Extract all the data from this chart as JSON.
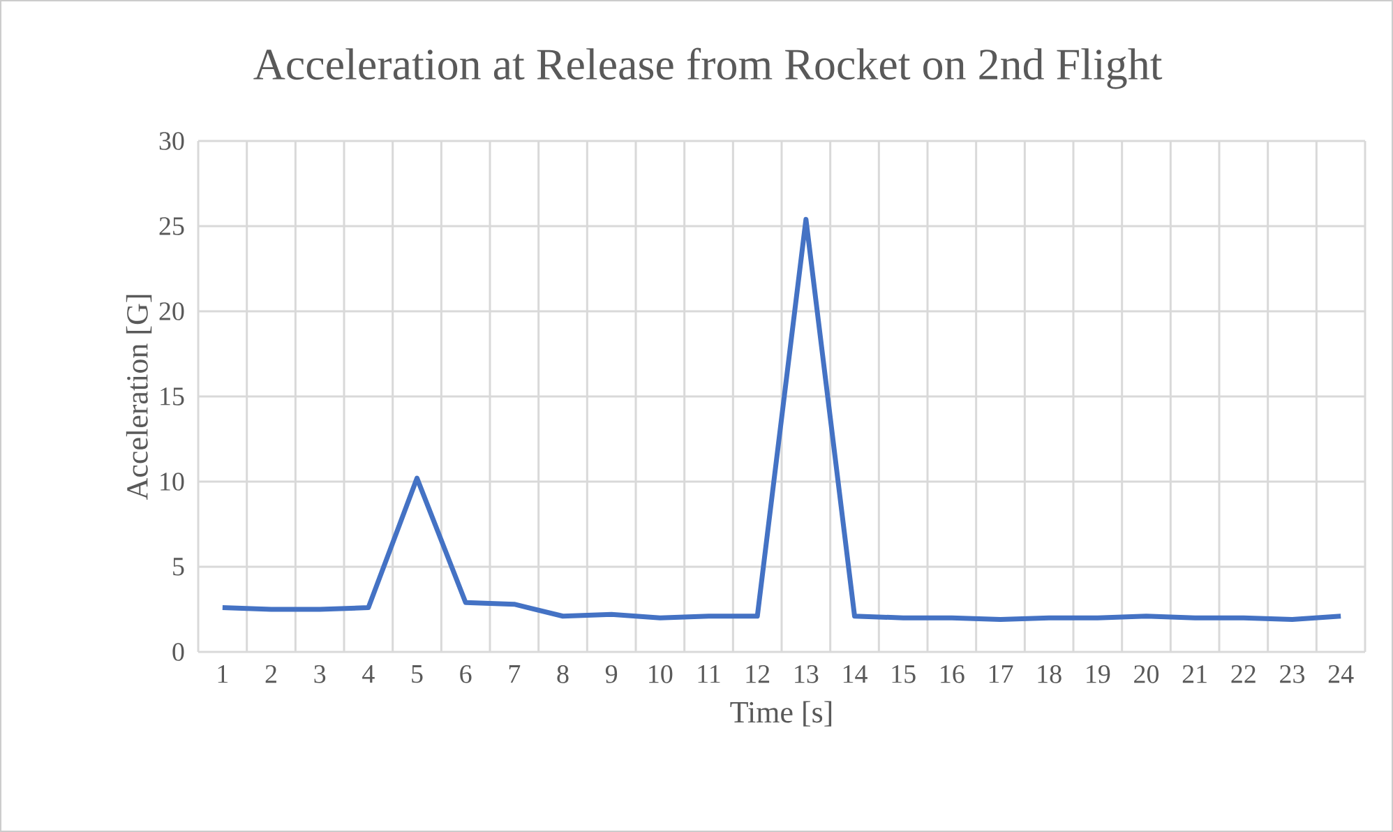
{
  "chart_data": {
    "type": "line",
    "title": "Acceleration at Release from Rocket on 2nd Flight",
    "xlabel": "Time [s]",
    "ylabel": "Acceleration [G]",
    "categories": [
      "1",
      "2",
      "3",
      "4",
      "5",
      "6",
      "7",
      "8",
      "9",
      "10",
      "11",
      "12",
      "13",
      "14",
      "15",
      "16",
      "17",
      "18",
      "19",
      "20",
      "21",
      "22",
      "23",
      "24"
    ],
    "series": [
      {
        "color": "#4472c4",
        "values": [
          2.6,
          2.5,
          2.5,
          2.6,
          10.2,
          2.9,
          2.8,
          2.1,
          2.2,
          2.0,
          2.1,
          2.1,
          25.4,
          2.1,
          2.0,
          2.0,
          1.9,
          2.0,
          2.0,
          2.1,
          2.0,
          2.0,
          1.9,
          2.1
        ]
      }
    ],
    "ylim": [
      0,
      30
    ],
    "yticks": [
      0,
      5,
      10,
      15,
      20,
      25,
      30
    ],
    "grid": true,
    "marker": "none",
    "line_style": "solid"
  }
}
